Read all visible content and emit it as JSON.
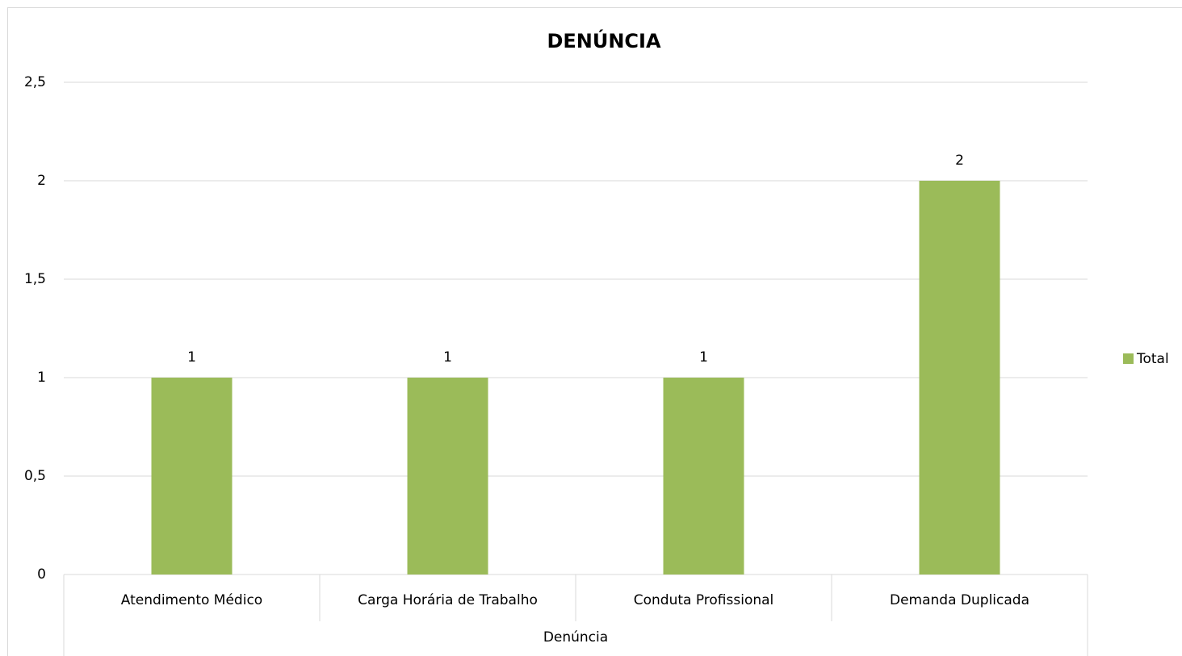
{
  "chart_data": {
    "type": "bar",
    "title": "DENÚNCIA",
    "x_label": "Denúncia",
    "categories": [
      "Atendimento Médico",
      "Carga Horária de Trabalho",
      "Conduta Profissional",
      "Demanda Duplicada"
    ],
    "series": [
      {
        "name": "Total",
        "color": "#9bbb59",
        "values": [
          1,
          1,
          1,
          2
        ]
      }
    ],
    "ylim": [
      0,
      2.5
    ],
    "yticks": [
      0,
      {
        "value": 0.5,
        "label": "0,5"
      },
      1,
      {
        "value": 1.5,
        "label": "1,5"
      },
      2,
      {
        "value": 2.5,
        "label": "2,5"
      }
    ],
    "grid": true,
    "legend": "right"
  }
}
